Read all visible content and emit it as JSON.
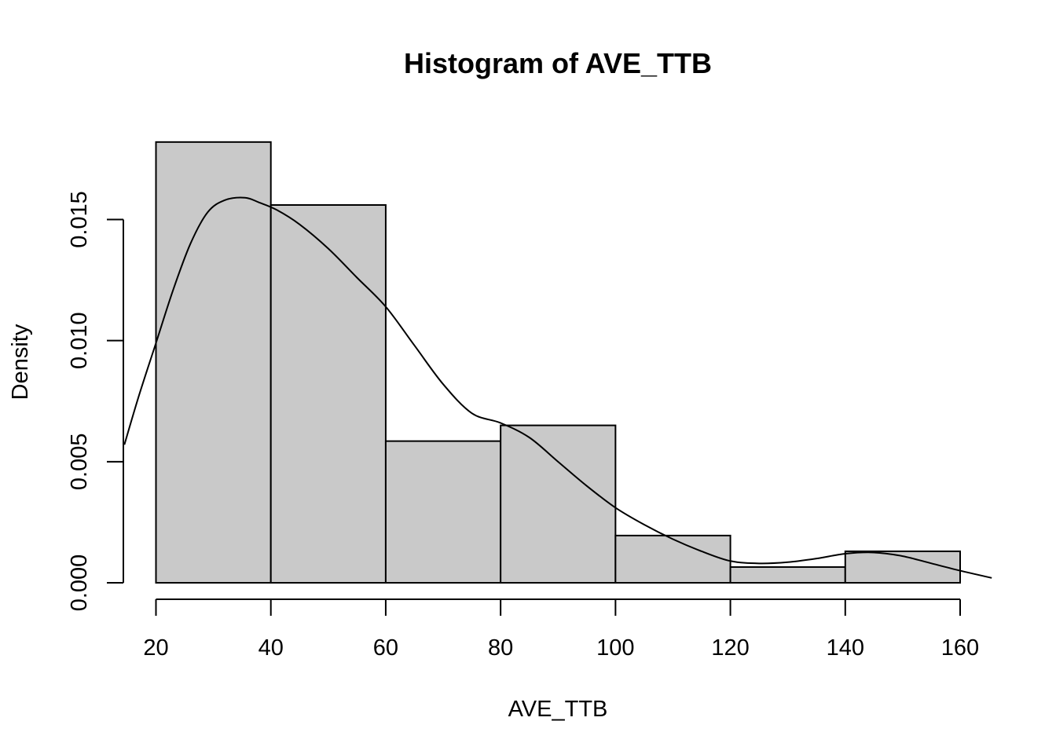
{
  "chart_data": {
    "type": "bar",
    "title": "Histogram of AVE_TTB",
    "xlabel": "AVE_TTB",
    "ylabel": "Density",
    "bins": [
      {
        "x0": 20,
        "x1": 40,
        "density": 0.0182
      },
      {
        "x0": 40,
        "x1": 60,
        "density": 0.0156
      },
      {
        "x0": 60,
        "x1": 80,
        "density": 0.00585
      },
      {
        "x0": 80,
        "x1": 100,
        "density": 0.0065
      },
      {
        "x0": 100,
        "x1": 120,
        "density": 0.00195
      },
      {
        "x0": 120,
        "x1": 140,
        "density": 0.00065
      },
      {
        "x0": 140,
        "x1": 160,
        "density": 0.0013
      }
    ],
    "density_curve": {
      "x": [
        14.5,
        17,
        20,
        23,
        26,
        29,
        32,
        35.5,
        38,
        41,
        45,
        50,
        55,
        60,
        65,
        70,
        75,
        80,
        85,
        90,
        95,
        100,
        105,
        110,
        115,
        120,
        125,
        130,
        135,
        140,
        145,
        150,
        155,
        160,
        165.5
      ],
      "y": [
        0.0057,
        0.0077,
        0.0099,
        0.0121,
        0.014,
        0.0153,
        0.0158,
        0.0159,
        0.0157,
        0.0154,
        0.0148,
        0.0138,
        0.0126,
        0.0114,
        0.0098,
        0.0082,
        0.007,
        0.0066,
        0.006,
        0.005,
        0.004,
        0.0031,
        0.0024,
        0.0018,
        0.0013,
        0.0009,
        0.0008,
        0.00085,
        0.001,
        0.0012,
        0.00125,
        0.0011,
        0.0008,
        0.0005,
        0.0002
      ]
    },
    "xlim": [
      20,
      160
    ],
    "ylim": [
      0,
      0.015
    ],
    "xticks": [
      20,
      40,
      60,
      80,
      100,
      120,
      140,
      160
    ],
    "xtick_labels": [
      "20",
      "40",
      "60",
      "80",
      "100",
      "120",
      "140",
      "160"
    ],
    "yticks": [
      0,
      0.005,
      0.01,
      0.015
    ],
    "ytick_labels": [
      "0.000",
      "0.005",
      "0.010",
      "0.015"
    ],
    "grid": false,
    "colors": {
      "bar_fill": "#c9c9c9",
      "stroke": "#000000"
    }
  }
}
